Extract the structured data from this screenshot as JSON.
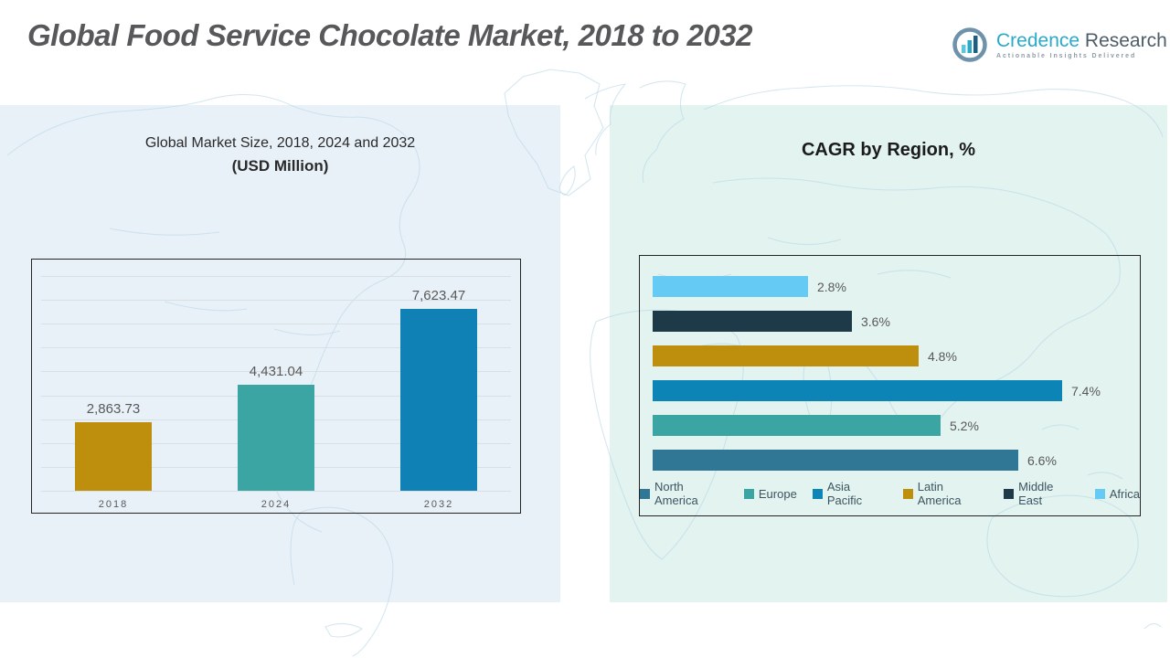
{
  "page": {
    "title": "Global Food Service Chocolate Market, 2018 to 2032"
  },
  "logo": {
    "brand_primary": "Credence",
    "brand_secondary": "Research",
    "tagline": "Actionable Insights Delivered"
  },
  "left_panel": {
    "heading_line1": "Global Market Size, 2018, 2024 and 2032",
    "heading_line2": "(USD Million)"
  },
  "right_panel": {
    "heading": "CAGR by Region, %"
  },
  "chart_data": [
    {
      "type": "bar",
      "title": "Global Market Size, 2018, 2024 and 2032 (USD Million)",
      "categories": [
        "2018",
        "2024",
        "2032"
      ],
      "values": [
        2863.73,
        4431.04,
        7623.47
      ],
      "value_labels": [
        "2,863.73",
        "4,431.04",
        "7,623.47"
      ],
      "colors": [
        "#BE8E0D",
        "#3AA5A2",
        "#1081B4"
      ],
      "xlabel": "",
      "ylabel": "USD Million",
      "ylim": [
        0,
        9000
      ],
      "grid": true,
      "gridline_count": 10
    },
    {
      "type": "bar",
      "orientation": "horizontal",
      "title": "CAGR by Region, %",
      "categories": [
        "Africa",
        "Middle East",
        "Latin America",
        "Asia Pacific",
        "Europe",
        "North America"
      ],
      "values": [
        2.8,
        3.6,
        4.8,
        7.4,
        5.2,
        6.6
      ],
      "value_labels": [
        "2.8%",
        "3.6%",
        "4.8%",
        "7.4%",
        "5.2%",
        "6.6%"
      ],
      "colors": [
        "#66CBF4",
        "#1E3947",
        "#BE8E0D",
        "#0C84B5",
        "#3AA5A2",
        "#2F7795"
      ],
      "xlim": [
        0,
        9
      ],
      "grid": false,
      "legend_position": "bottom",
      "legend": [
        "North America",
        "Europe",
        "Asia Pacific",
        "Latin America",
        "Middle East",
        "Africa"
      ],
      "legend_colors": [
        "#2F7795",
        "#3AA5A2",
        "#0C84B5",
        "#BE8E0D",
        "#1E3947",
        "#66CBF4"
      ]
    }
  ],
  "colors": {
    "brand_teal": "#2BA9C9",
    "title_text": "#57585A",
    "panel_left_bg": "#E9F1F8",
    "panel_right_bg": "#E2F3F0",
    "map_outline": "#B9D9E6",
    "chart_border": "#242424"
  }
}
